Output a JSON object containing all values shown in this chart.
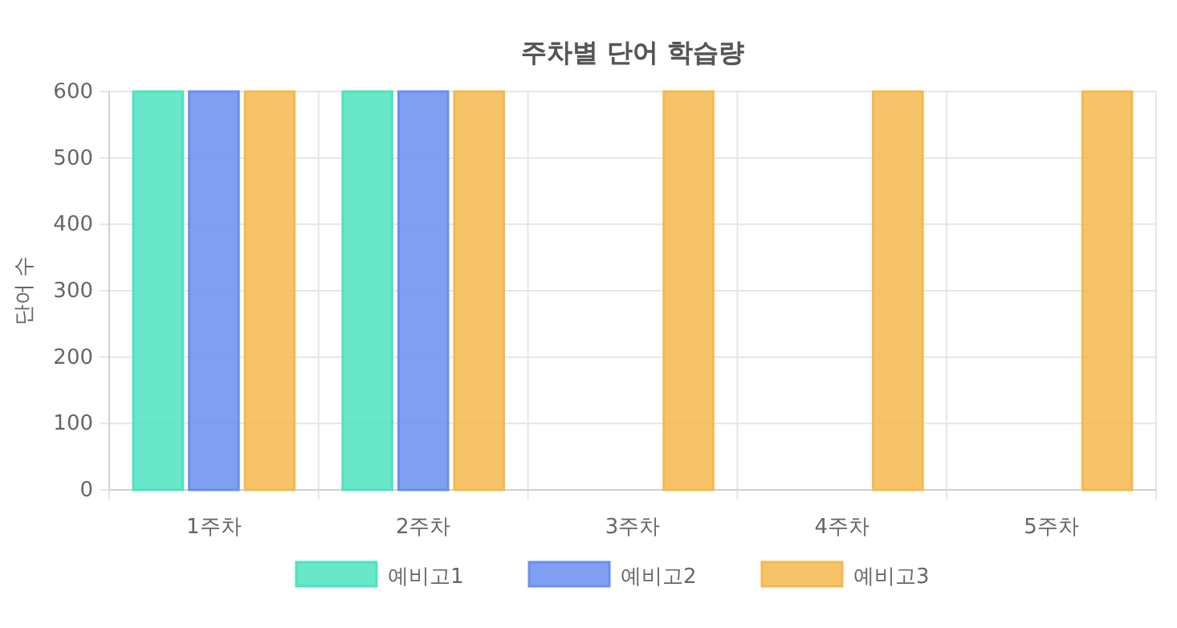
{
  "chart_data": {
    "type": "bar",
    "title": "주차별 단어 학습량",
    "ylabel": "단어 수",
    "categories": [
      "1주차",
      "2주차",
      "3주차",
      "4주차",
      "5주차"
    ],
    "series": [
      {
        "name": "예비고1",
        "color": "#4de3bf",
        "values": [
          600,
          600,
          0,
          0,
          0
        ]
      },
      {
        "name": "예비고2",
        "color": "#6a8ef0",
        "values": [
          600,
          600,
          0,
          0,
          0
        ]
      },
      {
        "name": "예비고3",
        "color": "#f5b84f",
        "values": [
          600,
          600,
          600,
          600,
          600
        ]
      }
    ],
    "ylim": [
      0,
      600
    ],
    "yticks": [
      0,
      100,
      200,
      300,
      400,
      500,
      600
    ],
    "grid": true,
    "legend": "bottom"
  }
}
